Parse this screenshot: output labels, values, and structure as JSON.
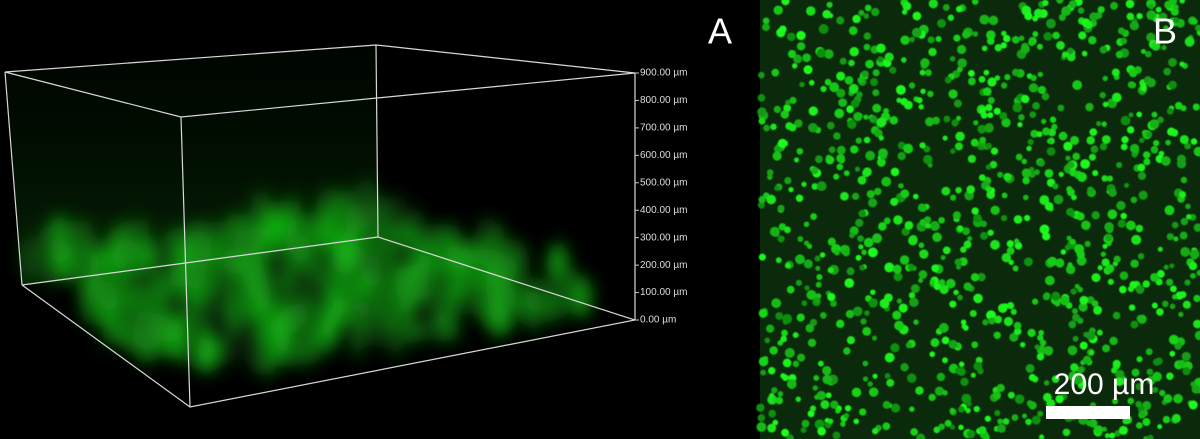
{
  "panels": {
    "a": {
      "label": "A",
      "axis_labels": [
        "900.00 µm",
        "800.00 µm",
        "700.00 µm",
        "600.00 µm",
        "500.00 µm",
        "400.00 µm",
        "300.00 µm",
        "200.00 µm",
        "100.00 µm",
        "0.00 µm"
      ]
    },
    "b": {
      "label": "B",
      "scale_bar": "200 µm"
    }
  }
}
